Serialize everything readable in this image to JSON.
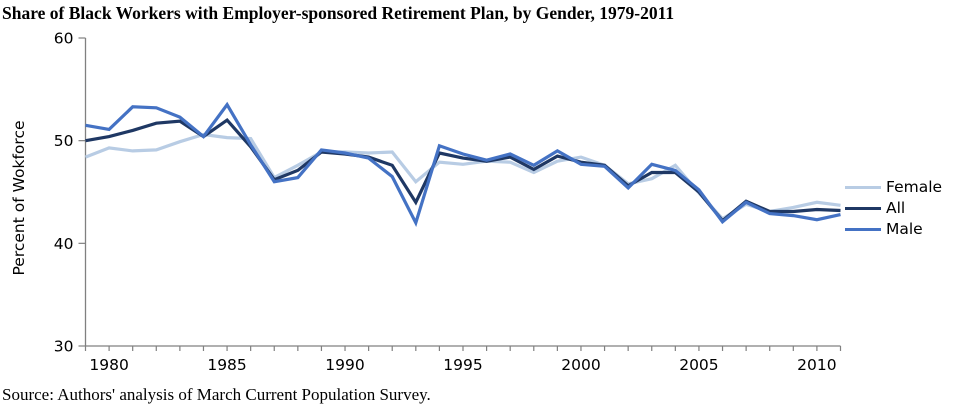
{
  "title": "Share of Black Workers with Employer-sponsored Retirement Plan, by Gender, 1979-2011",
  "source": "Source: Authors' analysis of March Current Population Survey.",
  "chart_data": {
    "type": "line",
    "title": "Share of Black Workers with Employer-sponsored Retirement Plan, by Gender, 1979-2011",
    "xlabel": "",
    "ylabel": "Percent of Wokforce",
    "xlim": [
      1979,
      2011
    ],
    "ylim": [
      30,
      60
    ],
    "grid": false,
    "legend_position": "right",
    "axis_color": "#808080",
    "text_color": "#000000",
    "x": [
      1979,
      1980,
      1981,
      1982,
      1983,
      1984,
      1985,
      1986,
      1987,
      1988,
      1989,
      1990,
      1991,
      1992,
      1993,
      1994,
      1995,
      1996,
      1997,
      1998,
      1999,
      2000,
      2001,
      2002,
      2003,
      2004,
      2005,
      2006,
      2007,
      2008,
      2009,
      2010,
      2011
    ],
    "x_tick_labels": [
      1980,
      1985,
      1990,
      1995,
      2000,
      2005,
      2010
    ],
    "y_ticks": [
      30,
      40,
      50,
      60
    ],
    "series": [
      {
        "name": "Female",
        "color": "#b8cce4",
        "values": [
          48.4,
          49.3,
          49.0,
          49.1,
          49.9,
          50.6,
          50.3,
          50.2,
          46.4,
          47.6,
          48.9,
          48.9,
          48.8,
          48.9,
          46.0,
          47.9,
          47.7,
          48.0,
          47.9,
          46.9,
          48.0,
          48.4,
          47.6,
          45.8,
          46.3,
          47.6,
          44.9,
          42.4,
          43.8,
          43.1,
          43.5,
          44.0,
          43.7
        ]
      },
      {
        "name": "All",
        "color": "#1f3864",
        "values": [
          50.0,
          50.4,
          51.0,
          51.7,
          51.9,
          50.4,
          52.0,
          49.4,
          46.2,
          47.1,
          48.9,
          48.7,
          48.4,
          47.6,
          44.0,
          48.8,
          48.3,
          48.0,
          48.4,
          47.2,
          48.5,
          47.9,
          47.6,
          45.6,
          46.9,
          46.9,
          45.0,
          42.2,
          44.1,
          43.1,
          43.1,
          43.3,
          43.2
        ]
      },
      {
        "name": "Male",
        "color": "#4472c4",
        "values": [
          51.5,
          51.1,
          53.3,
          53.2,
          52.3,
          50.4,
          53.5,
          49.6,
          46.0,
          46.4,
          49.1,
          48.8,
          48.3,
          46.5,
          42.0,
          49.5,
          48.7,
          48.1,
          48.7,
          47.6,
          49.0,
          47.7,
          47.5,
          45.4,
          47.7,
          47.1,
          45.2,
          42.1,
          44.0,
          42.9,
          42.7,
          42.3,
          42.8
        ]
      }
    ]
  }
}
